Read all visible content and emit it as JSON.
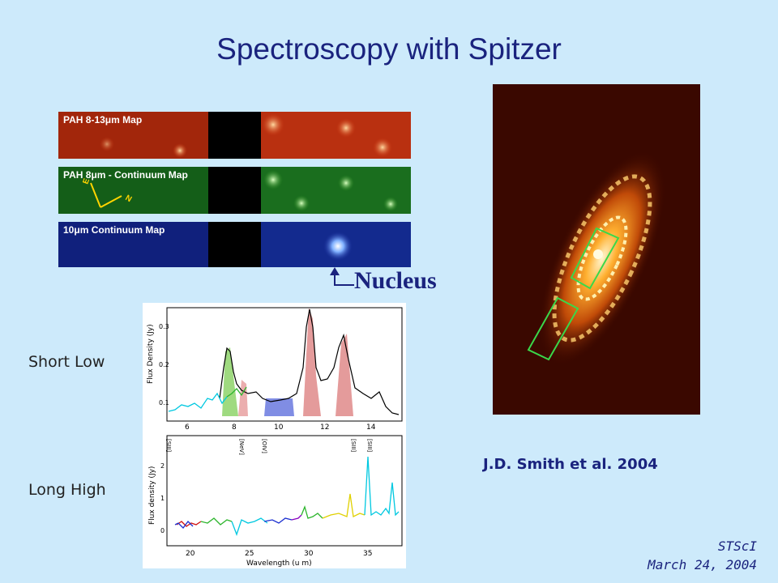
{
  "slide": {
    "title": "Spectroscopy with Spitzer",
    "maps": [
      {
        "label": "PAH 8-13μm Map",
        "color": "#d23a10"
      },
      {
        "label": "PAH 8μm - Continuum Map",
        "color": "#2e8f20"
      },
      {
        "label": "10μm Continuum Map",
        "color": "#1a2fa0"
      }
    ],
    "compass": {
      "east": "E",
      "north": "N"
    },
    "nucleus_label": "Nucleus",
    "spectra": {
      "short_low_label": "Short Low",
      "long_high_label": "Long High",
      "sl_plot": {
        "ylabel": "Flux Density (Jy)",
        "yticks": [
          "0.1",
          "0.2",
          "0.3"
        ],
        "xticks": [
          "6",
          "8",
          "10",
          "12",
          "14"
        ]
      },
      "lh_plot": {
        "ylabel": "Flux density (Jy)",
        "xlabel": "Wavelength (u m)",
        "yticks": [
          "0",
          "1",
          "2"
        ],
        "xticks": [
          "20",
          "25",
          "30",
          "35"
        ],
        "lines": [
          "[SIII]",
          "[NeV]",
          "[OIV]",
          "[SIII]",
          "[SIII]"
        ]
      }
    },
    "credit": "J.D. Smith et al. 2004",
    "footer": {
      "org": "STScI",
      "date": "March 24, 2004"
    }
  }
}
